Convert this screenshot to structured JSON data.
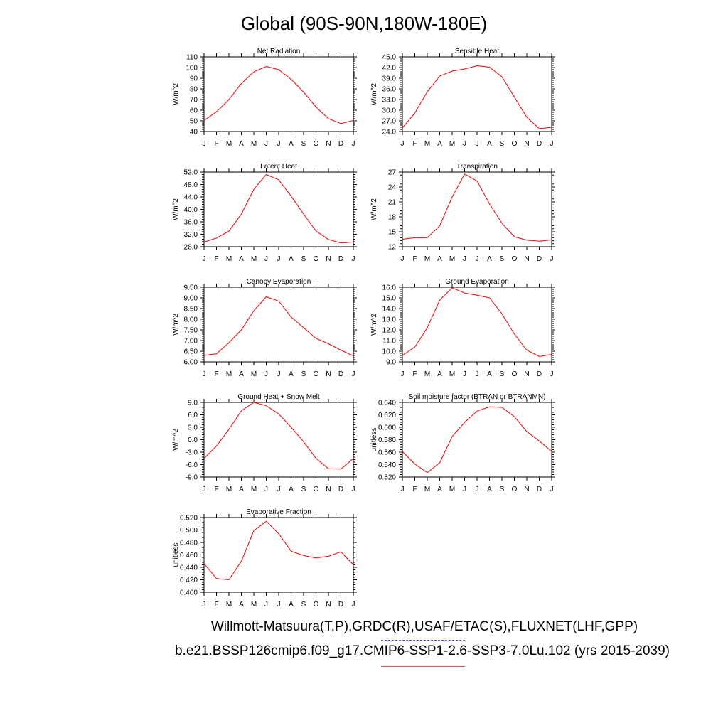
{
  "title": "Global (90S-90N,180W-180E)",
  "captions": {
    "observations": "Willmott-Matsuura(T,P),GRDC(R),USAF/ETAC(S),FLUXNET(LHF,GPP)",
    "case": "b.e21.BSSP126cmip6.f09_g17.CMIP6-SSP1-2.6-SSP3-7.0Lu.102 (yrs 2015-2039)"
  },
  "colors": {
    "series_line": "#ff0000",
    "observation_legend": "#4a4af0",
    "case_legend": "#e05050"
  },
  "month_labels": [
    "J",
    "F",
    "M",
    "A",
    "M",
    "J",
    "J",
    "A",
    "S",
    "O",
    "N",
    "D",
    "J"
  ],
  "chart_data": [
    {
      "type": "line",
      "title": "Net Radiation",
      "ylabel": "W/m^2",
      "ylim": [
        40,
        110
      ],
      "yticks": [
        "110",
        "100",
        "90",
        "80",
        "70",
        "60",
        "50",
        "40"
      ],
      "ytick_values": [
        110,
        100,
        90,
        80,
        70,
        60,
        50,
        40
      ],
      "values": [
        50.5,
        58.5,
        70,
        85,
        96,
        101,
        98,
        89,
        77,
        63,
        52,
        47.5,
        50.5
      ]
    },
    {
      "type": "line",
      "title": "Sensible Heat",
      "ylabel": "W/m^2",
      "ylim": [
        24,
        45
      ],
      "yticks": [
        "45.0",
        "42.0",
        "39.0",
        "36.0",
        "33.0",
        "30.0",
        "27.0",
        "24.0"
      ],
      "ytick_values": [
        45,
        42,
        39,
        36,
        33,
        30,
        27,
        24
      ],
      "values": [
        25,
        29.2,
        35.2,
        39.6,
        41,
        41.6,
        42.5,
        42.1,
        39.4,
        33.7,
        28,
        24.8,
        25.2
      ]
    },
    {
      "type": "line",
      "title": "Latent Heat",
      "ylabel": "W/m^2",
      "ylim": [
        28,
        52
      ],
      "yticks": [
        "52.0",
        "48.0",
        "44.0",
        "40.0",
        "36.0",
        "32.0",
        "28.0"
      ],
      "ytick_values": [
        52,
        48,
        44,
        40,
        36,
        32,
        28
      ],
      "values": [
        29.5,
        30.8,
        33,
        38.5,
        46.5,
        51.2,
        49.5,
        44.2,
        38.5,
        33,
        30.3,
        29.2,
        29.5
      ]
    },
    {
      "type": "line",
      "title": "Transpiration",
      "ylabel": "W/m^2",
      "ylim": [
        12,
        27
      ],
      "yticks": [
        "27",
        "24",
        "21",
        "18",
        "15",
        "12"
      ],
      "ytick_values": [
        27,
        24,
        21,
        18,
        15,
        12
      ],
      "values": [
        13.5,
        13.8,
        13.8,
        16.2,
        22,
        26.6,
        25.2,
        20.6,
        16.7,
        14,
        13.3,
        13.1,
        13.4
      ]
    },
    {
      "type": "line",
      "title": "Canopy Evaporation",
      "ylabel": "W/m^2",
      "ylim": [
        6,
        9.5
      ],
      "yticks": [
        "9.50",
        "9.00",
        "8.50",
        "8.00",
        "7.50",
        "7.00",
        "6.50",
        "6.00"
      ],
      "ytick_values": [
        9.5,
        9,
        8.5,
        8,
        7.5,
        7,
        6.5,
        6
      ],
      "values": [
        6.3,
        6.38,
        6.9,
        7.5,
        8.4,
        9.05,
        8.85,
        8.1,
        7.6,
        7.1,
        6.85,
        6.55,
        6.28
      ]
    },
    {
      "type": "line",
      "title": "Ground Evaporation",
      "ylabel": "W/m^2",
      "ylim": [
        9,
        16
      ],
      "yticks": [
        "16.0",
        "15.0",
        "14.0",
        "13.0",
        "12.0",
        "11.0",
        "10.0",
        "9.0"
      ],
      "ytick_values": [
        16,
        15,
        14,
        13,
        12,
        11,
        10,
        9
      ],
      "values": [
        9.6,
        10.4,
        12.2,
        14.8,
        15.95,
        15.45,
        15.25,
        15,
        13.5,
        11.6,
        10.1,
        9.5,
        9.7
      ]
    },
    {
      "type": "line",
      "title": "Ground Heat + Snow Melt",
      "ylabel": "W/m^2",
      "ylim": [
        -9,
        9
      ],
      "yticks": [
        "9.0",
        "6.0",
        "3.0",
        "0.0",
        "-3.0",
        "-6.0",
        "-9.0"
      ],
      "ytick_values": [
        9,
        6,
        3,
        0,
        -3,
        -6,
        -9
      ],
      "values": [
        -4.5,
        -1.5,
        2.5,
        7,
        9,
        8.2,
        6.2,
        3,
        -0.5,
        -4.5,
        -7,
        -7.1,
        -4.5
      ]
    },
    {
      "type": "line",
      "title": "Soil moisture factor (BTRAN or BTRANMN)",
      "ylabel": "unitless",
      "ylim": [
        0.52,
        0.64
      ],
      "yticks": [
        "0.640",
        "0.620",
        "0.600",
        "0.580",
        "0.560",
        "0.540",
        "0.520"
      ],
      "ytick_values": [
        0.64,
        0.62,
        0.6,
        0.58,
        0.56,
        0.54,
        0.52
      ],
      "values": [
        0.561,
        0.541,
        0.527,
        0.543,
        0.585,
        0.608,
        0.626,
        0.633,
        0.632,
        0.617,
        0.593,
        0.578,
        0.561
      ]
    },
    {
      "type": "line",
      "title": "Evaporative Fraction",
      "ylabel": "unitless",
      "ylim": [
        0.4,
        0.52
      ],
      "yticks": [
        "0.520",
        "0.500",
        "0.480",
        "0.460",
        "0.440",
        "0.420",
        "0.400"
      ],
      "ytick_values": [
        0.52,
        0.5,
        0.48,
        0.46,
        0.44,
        0.42,
        0.4
      ],
      "values": [
        0.446,
        0.422,
        0.42,
        0.45,
        0.499,
        0.514,
        0.494,
        0.466,
        0.459,
        0.455,
        0.458,
        0.465,
        0.444
      ]
    }
  ]
}
